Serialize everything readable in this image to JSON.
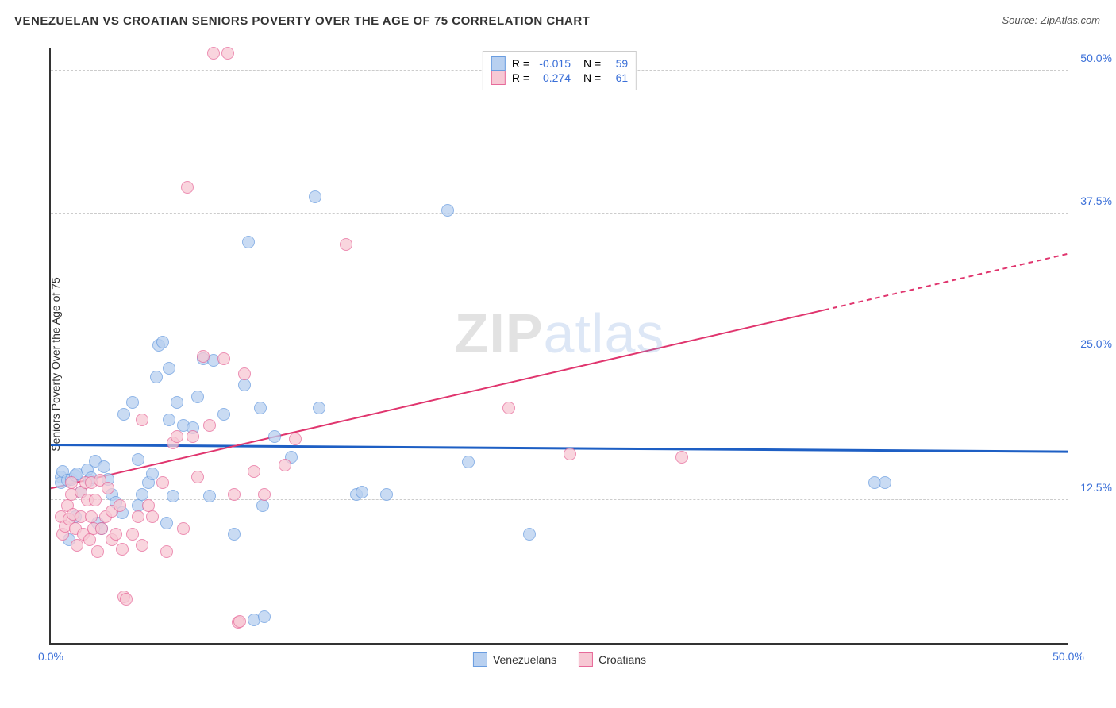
{
  "title": "VENEZUELAN VS CROATIAN SENIORS POVERTY OVER THE AGE OF 75 CORRELATION CHART",
  "source": "Source: ZipAtlas.com",
  "y_axis_label": "Seniors Poverty Over the Age of 75",
  "watermark": {
    "left": "ZIP",
    "right": "atlas"
  },
  "axes": {
    "x_min": 0,
    "x_max": 50,
    "y_min": 0,
    "y_max": 52,
    "x_ticks": [
      {
        "v": 0,
        "label": "0.0%"
      },
      {
        "v": 50,
        "label": "50.0%"
      }
    ],
    "y_ticks": [
      {
        "v": 12.5,
        "label": "12.5%"
      },
      {
        "v": 25,
        "label": "25.0%"
      },
      {
        "v": 37.5,
        "label": "37.5%"
      },
      {
        "v": 50,
        "label": "50.0%"
      }
    ],
    "grid_color": "#cccccc"
  },
  "series": [
    {
      "key": "venezuelans",
      "label": "Venezuelans",
      "R": "-0.015",
      "N": "59",
      "fill": "#b8d0f0",
      "stroke": "#6a9de0",
      "line_color": "#1e5fc4",
      "line_width": 3,
      "line": {
        "x1": 0,
        "y1": 17.3,
        "x2": 50,
        "y2": 16.7,
        "solid_until_x": 50
      },
      "marker_radius": 8,
      "points": [
        [
          0.5,
          14.5
        ],
        [
          0.5,
          14.0
        ],
        [
          0.6,
          15.0
        ],
        [
          0.8,
          14.2
        ],
        [
          0.9,
          9.0
        ],
        [
          1.0,
          14.3
        ],
        [
          1.2,
          14.6
        ],
        [
          1.2,
          11.0
        ],
        [
          1.3,
          14.8
        ],
        [
          1.5,
          13.2
        ],
        [
          1.8,
          15.1
        ],
        [
          1.9,
          14.2
        ],
        [
          2.0,
          14.4
        ],
        [
          2.2,
          15.9
        ],
        [
          2.3,
          10.5
        ],
        [
          2.5,
          10.0
        ],
        [
          2.6,
          15.4
        ],
        [
          2.8,
          14.3
        ],
        [
          3.0,
          13.0
        ],
        [
          3.2,
          12.3
        ],
        [
          3.5,
          11.4
        ],
        [
          3.6,
          20.0
        ],
        [
          4.0,
          21.0
        ],
        [
          4.3,
          12.0
        ],
        [
          4.3,
          16.0
        ],
        [
          4.5,
          13.0
        ],
        [
          4.8,
          14.0
        ],
        [
          5.0,
          14.8
        ],
        [
          5.2,
          23.2
        ],
        [
          5.3,
          26.0
        ],
        [
          5.5,
          26.3
        ],
        [
          5.7,
          10.5
        ],
        [
          5.8,
          24.0
        ],
        [
          5.8,
          19.5
        ],
        [
          6.0,
          12.8
        ],
        [
          6.2,
          21.0
        ],
        [
          6.5,
          19.0
        ],
        [
          7.0,
          18.8
        ],
        [
          7.2,
          21.5
        ],
        [
          7.5,
          24.8
        ],
        [
          7.8,
          12.8
        ],
        [
          8.0,
          24.7
        ],
        [
          8.5,
          20.0
        ],
        [
          9.0,
          9.5
        ],
        [
          9.5,
          22.5
        ],
        [
          9.7,
          35.0
        ],
        [
          10.0,
          2.0
        ],
        [
          10.3,
          20.5
        ],
        [
          10.4,
          12.0
        ],
        [
          10.5,
          2.3
        ],
        [
          11.0,
          18.0
        ],
        [
          11.8,
          16.2
        ],
        [
          13.0,
          39.0
        ],
        [
          13.2,
          20.5
        ],
        [
          15.0,
          13.0
        ],
        [
          15.3,
          13.2
        ],
        [
          16.5,
          13.0
        ],
        [
          19.5,
          37.8
        ],
        [
          20.5,
          15.8
        ],
        [
          23.5,
          9.5
        ],
        [
          40.5,
          14.0
        ],
        [
          41.0,
          14.0
        ]
      ]
    },
    {
      "key": "croatians",
      "label": "Croatians",
      "R": "0.274",
      "N": "61",
      "fill": "#f7c8d4",
      "stroke": "#e76a9a",
      "line_color": "#e0356e",
      "line_width": 2,
      "line": {
        "x1": 0,
        "y1": 13.5,
        "x2": 50,
        "y2": 34.0,
        "solid_until_x": 38
      },
      "marker_radius": 8,
      "points": [
        [
          0.5,
          11.0
        ],
        [
          0.6,
          9.5
        ],
        [
          0.7,
          10.2
        ],
        [
          0.8,
          12.0
        ],
        [
          0.9,
          10.8
        ],
        [
          1.0,
          14.0
        ],
        [
          1.0,
          13.0
        ],
        [
          1.1,
          11.2
        ],
        [
          1.2,
          10.0
        ],
        [
          1.3,
          8.5
        ],
        [
          1.5,
          13.2
        ],
        [
          1.5,
          11.0
        ],
        [
          1.6,
          9.5
        ],
        [
          1.7,
          14.0
        ],
        [
          1.8,
          12.5
        ],
        [
          1.9,
          9.0
        ],
        [
          2.0,
          14.0
        ],
        [
          2.0,
          11.0
        ],
        [
          2.1,
          10.0
        ],
        [
          2.2,
          12.5
        ],
        [
          2.3,
          8.0
        ],
        [
          2.4,
          14.2
        ],
        [
          2.5,
          10.0
        ],
        [
          2.7,
          11.0
        ],
        [
          2.8,
          13.5
        ],
        [
          3.0,
          9.0
        ],
        [
          3.0,
          11.5
        ],
        [
          3.2,
          9.5
        ],
        [
          3.4,
          12.0
        ],
        [
          3.5,
          8.2
        ],
        [
          3.6,
          4.0
        ],
        [
          3.7,
          3.8
        ],
        [
          4.0,
          9.5
        ],
        [
          4.3,
          11.0
        ],
        [
          4.5,
          8.5
        ],
        [
          4.5,
          19.5
        ],
        [
          4.8,
          12.0
        ],
        [
          5.0,
          11.0
        ],
        [
          5.5,
          14.0
        ],
        [
          5.7,
          8.0
        ],
        [
          6.0,
          17.5
        ],
        [
          6.2,
          18.0
        ],
        [
          6.5,
          10.0
        ],
        [
          6.7,
          39.8
        ],
        [
          7.0,
          18.0
        ],
        [
          7.2,
          14.5
        ],
        [
          7.5,
          25.0
        ],
        [
          7.8,
          19.0
        ],
        [
          8.0,
          51.5
        ],
        [
          8.7,
          51.5
        ],
        [
          8.5,
          24.8
        ],
        [
          9.0,
          13.0
        ],
        [
          9.2,
          1.8
        ],
        [
          9.3,
          1.9
        ],
        [
          9.5,
          23.5
        ],
        [
          10.0,
          15.0
        ],
        [
          10.5,
          13.0
        ],
        [
          11.5,
          15.5
        ],
        [
          12.0,
          17.8
        ],
        [
          14.5,
          34.8
        ],
        [
          22.5,
          20.5
        ],
        [
          25.5,
          16.5
        ],
        [
          31.0,
          16.2
        ]
      ]
    }
  ],
  "legend_top": {
    "R_label": "R =",
    "N_label": "N ="
  },
  "legend_bottom_icon_size": 18
}
